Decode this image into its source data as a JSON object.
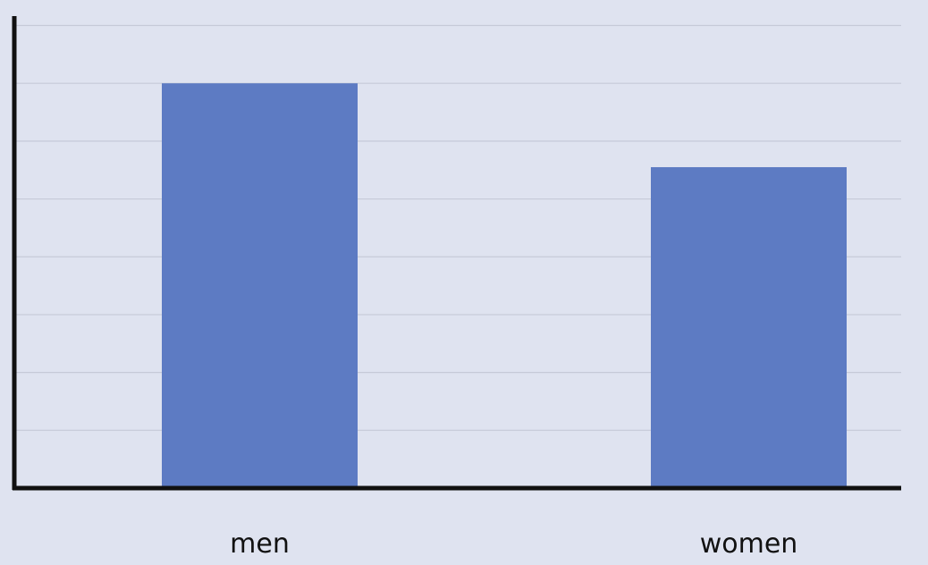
{
  "chart_data": {
    "type": "bar",
    "categories": [
      "men",
      "women"
    ],
    "values": [
      7.0,
      5.55
    ],
    "ylim": [
      0,
      8
    ],
    "grid": true,
    "title": "",
    "xlabel": "",
    "ylabel": "",
    "colors": {
      "background": "#dfe3f0",
      "bar": "#5d7bc3",
      "grid": "#c6cad8",
      "axis": "#111111"
    }
  }
}
